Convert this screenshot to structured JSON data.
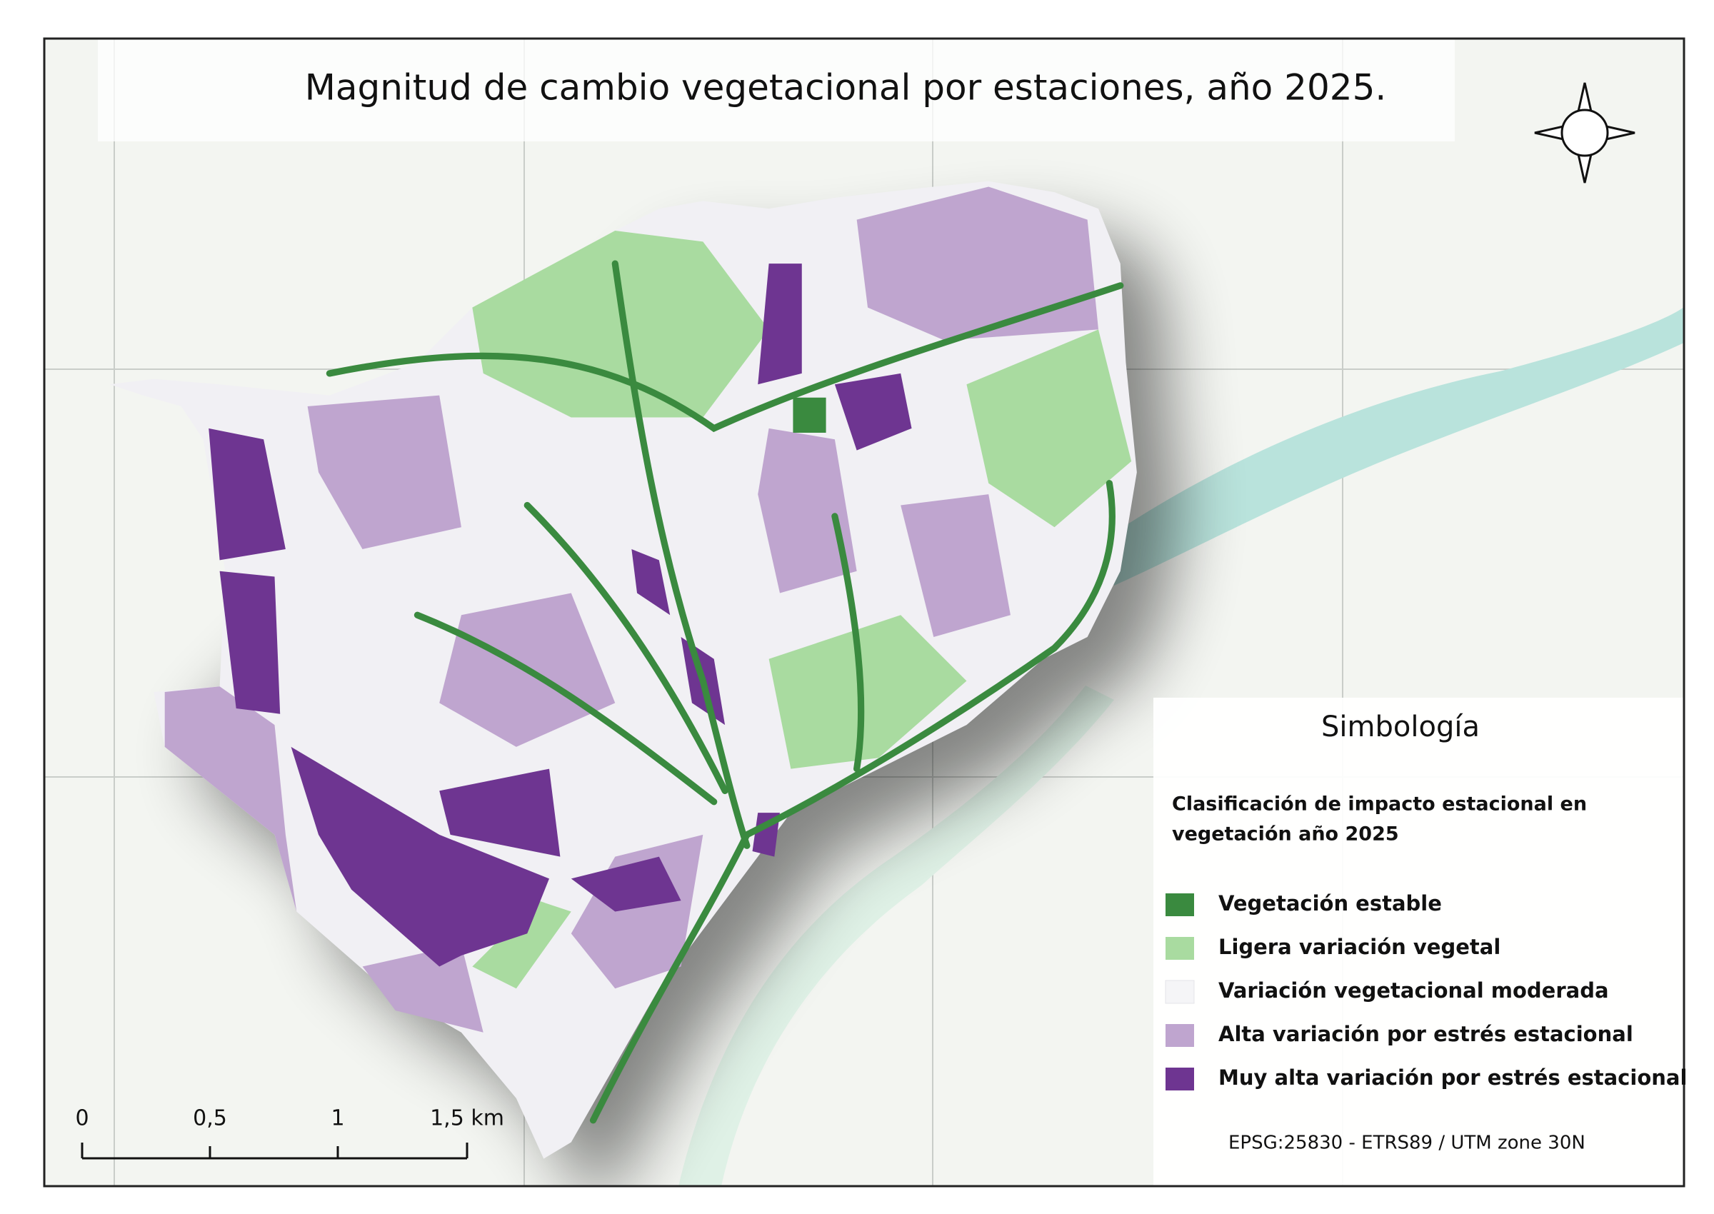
{
  "title": "Magnitud de cambio vegetacional por estaciones, año 2025.",
  "legend": {
    "heading": "Simbología",
    "title_lines": [
      "Clasificación de impacto estacional en",
      "vegetación año 2025"
    ],
    "items": [
      {
        "label": "Vegetación estable",
        "color": "#3a8a3f"
      },
      {
        "label": "Ligera variación vegetal",
        "color": "#a9dba0"
      },
      {
        "label": "Variación vegetacional moderada",
        "color": "#f5f5f7"
      },
      {
        "label": "Alta variación por estrés estacional",
        "color": "#bfa5cf"
      },
      {
        "label": "Muy alta variación por estrés estacional",
        "color": "#6e3591"
      }
    ]
  },
  "scale_bar": {
    "labels": [
      "0",
      "0,5",
      "1",
      "1,5 km"
    ]
  },
  "crs": "EPSG:25830 - ETRS89 / UTM zone 30N"
}
